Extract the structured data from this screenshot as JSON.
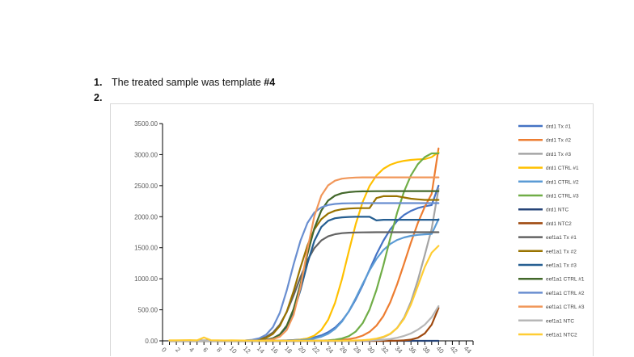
{
  "document": {
    "items": [
      {
        "number": "1.",
        "text_before": "The treated sample was template ",
        "text_bold": "#4"
      },
      {
        "number": "2.",
        "text_before": "",
        "text_bold": ""
      }
    ]
  },
  "chart_data": {
    "type": "line",
    "title": "",
    "xlabel": "",
    "ylabel": "",
    "ylim": [
      0,
      3500
    ],
    "xlim": [
      0,
      45
    ],
    "y_ticks": [
      "0.00",
      "500.00",
      "1000.00",
      "1500.00",
      "2000.00",
      "2500.00",
      "3000.00",
      "3500.00"
    ],
    "x_ticks": [
      0,
      2,
      4,
      6,
      8,
      10,
      12,
      14,
      16,
      18,
      20,
      22,
      24,
      26,
      28,
      30,
      32,
      34,
      36,
      38,
      40,
      42,
      44
    ],
    "legend_position": "right",
    "x": [
      1,
      2,
      3,
      4,
      5,
      6,
      7,
      8,
      9,
      10,
      11,
      12,
      13,
      14,
      15,
      16,
      17,
      18,
      19,
      20,
      21,
      22,
      23,
      24,
      25,
      26,
      27,
      28,
      29,
      30,
      31,
      32,
      33,
      34,
      35,
      36,
      37,
      38,
      39,
      40
    ],
    "series": [
      {
        "name": "drd1 Tx #1",
        "color": "#4472C4",
        "values": [
          0,
          0,
          0,
          0,
          0,
          0,
          0,
          0,
          0,
          0,
          0,
          0,
          0,
          1,
          2,
          3,
          5,
          8,
          13,
          22,
          35,
          56,
          89,
          139,
          214,
          324,
          474,
          667,
          897,
          1147,
          1393,
          1613,
          1794,
          1931,
          2028,
          2094,
          2139,
          2168,
          2187,
          2500
        ]
      },
      {
        "name": "drd1 Tx #2",
        "color": "#ED7D31",
        "values": [
          0,
          0,
          0,
          0,
          0,
          0,
          0,
          0,
          0,
          0,
          0,
          0,
          0,
          0,
          0,
          0,
          0,
          0,
          0,
          0,
          1,
          2,
          3,
          5,
          9,
          16,
          28,
          48,
          84,
          145,
          245,
          400,
          622,
          911,
          1244,
          1585,
          1898,
          2160,
          2368,
          3100
        ]
      },
      {
        "name": "drd1 Tx #3",
        "color": "#A5A5A5",
        "values": [
          0,
          0,
          0,
          0,
          0,
          0,
          0,
          0,
          0,
          0,
          0,
          0,
          0,
          0,
          0,
          0,
          0,
          0,
          0,
          0,
          0,
          0,
          0,
          0,
          0,
          1,
          2,
          4,
          8,
          15,
          30,
          58,
          111,
          208,
          374,
          630,
          977,
          1385,
          1805,
          2450
        ]
      },
      {
        "name": "drd1 CTRL #1",
        "color": "#FFC000",
        "values": [
          0,
          0,
          0,
          0,
          0,
          0,
          0,
          0,
          0,
          0,
          0,
          0,
          0,
          0,
          0,
          1,
          2,
          4,
          9,
          19,
          40,
          85,
          174,
          340,
          612,
          995,
          1444,
          1880,
          2238,
          2495,
          2664,
          2771,
          2836,
          2876,
          2900,
          2914,
          2923,
          2928,
          2960,
          3040
        ]
      },
      {
        "name": "drd1 CTRL #2",
        "color": "#5B9BD5",
        "values": [
          0,
          0,
          0,
          0,
          0,
          0,
          0,
          0,
          0,
          0,
          0,
          0,
          0,
          0,
          1,
          1,
          2,
          4,
          7,
          12,
          22,
          38,
          66,
          114,
          192,
          311,
          478,
          688,
          917,
          1136,
          1321,
          1462,
          1560,
          1625,
          1666,
          1691,
          1707,
          1716,
          1722,
          1960
        ]
      },
      {
        "name": "drd1 CTRL #3",
        "color": "#70AD47",
        "values": [
          0,
          0,
          0,
          0,
          0,
          0,
          0,
          0,
          0,
          0,
          0,
          0,
          0,
          0,
          0,
          0,
          0,
          0,
          0,
          0,
          1,
          2,
          4,
          9,
          18,
          38,
          76,
          150,
          285,
          505,
          820,
          1218,
          1654,
          2065,
          2407,
          2666,
          2845,
          2960,
          3020,
          3020
        ]
      },
      {
        "name": "drd1 NTC",
        "color": "#264478",
        "values": [
          0,
          0,
          0,
          0,
          0,
          0,
          0,
          0,
          0,
          0,
          0,
          0,
          0,
          0,
          0,
          0,
          0,
          0,
          0,
          0,
          0,
          0,
          0,
          0,
          0,
          0,
          0,
          0,
          0,
          0,
          0,
          0,
          0,
          0,
          0,
          0,
          0,
          0,
          0,
          0
        ]
      },
      {
        "name": "drd1 NTC2",
        "color": "#9E480E",
        "values": [
          0,
          0,
          0,
          0,
          0,
          0,
          0,
          0,
          0,
          0,
          0,
          0,
          0,
          0,
          0,
          0,
          0,
          0,
          0,
          0,
          0,
          0,
          0,
          0,
          0,
          0,
          0,
          0,
          0,
          0,
          0,
          0,
          1,
          3,
          8,
          20,
          50,
          120,
          260,
          530
        ]
      },
      {
        "name": "eef1a1 Tx #1",
        "color": "#636363",
        "values": [
          0,
          0,
          0,
          0,
          0,
          0,
          0,
          0,
          0,
          1,
          2,
          5,
          12,
          28,
          63,
          134,
          263,
          465,
          732,
          1029,
          1297,
          1494,
          1617,
          1684,
          1718,
          1735,
          1742,
          1746,
          1748,
          1749,
          1750,
          1750,
          1750,
          1750,
          1750,
          1750,
          1750,
          1750,
          1750,
          1750
        ]
      },
      {
        "name": "eef1a1 Tx #2",
        "color": "#997300",
        "values": [
          0,
          0,
          0,
          0,
          0,
          0,
          0,
          0,
          0,
          0,
          1,
          3,
          8,
          20,
          48,
          112,
          242,
          471,
          802,
          1186,
          1536,
          1796,
          1959,
          2050,
          2097,
          2120,
          2131,
          2136,
          2138,
          2139,
          2300,
          2330,
          2330,
          2330,
          2310,
          2290,
          2280,
          2270,
          2270,
          2270
        ]
      },
      {
        "name": "eef1a1 Tx #3",
        "color": "#255E91",
        "values": [
          0,
          0,
          0,
          0,
          0,
          0,
          0,
          0,
          0,
          0,
          0,
          1,
          3,
          7,
          17,
          42,
          100,
          226,
          464,
          826,
          1246,
          1610,
          1833,
          1935,
          1975,
          1990,
          1996,
          1998,
          1999,
          1999,
          1940,
          1950,
          1950,
          1950,
          1950,
          1950,
          1950,
          1950,
          1950,
          1950
        ]
      },
      {
        "name": "eef1a1 CTRL #1",
        "color": "#43682B",
        "values": [
          0,
          0,
          0,
          0,
          0,
          0,
          0,
          0,
          0,
          0,
          0,
          1,
          2,
          6,
          16,
          41,
          103,
          244,
          514,
          924,
          1399,
          1813,
          2099,
          2260,
          2340,
          2378,
          2396,
          2404,
          2408,
          2410,
          2411,
          2411,
          2412,
          2412,
          2412,
          2412,
          2412,
          2412,
          2412,
          2412
        ]
      },
      {
        "name": "eef1a1 CTRL #2",
        "color": "#698ED0",
        "values": [
          0,
          0,
          0,
          0,
          0,
          0,
          0,
          0,
          0,
          1,
          3,
          7,
          17,
          41,
          97,
          221,
          454,
          813,
          1233,
          1619,
          1900,
          2067,
          2150,
          2189,
          2206,
          2213,
          2216,
          2217,
          2218,
          2218,
          2218,
          2218,
          2218,
          2218,
          2218,
          2218,
          2218,
          2218,
          2218,
          2218
        ]
      },
      {
        "name": "eef1a1 CTRL #3",
        "color": "#F1975A",
        "values": [
          0,
          0,
          0,
          0,
          0,
          0,
          0,
          0,
          0,
          0,
          0,
          0,
          1,
          4,
          10,
          26,
          68,
          175,
          419,
          873,
          1474,
          2008,
          2340,
          2506,
          2580,
          2612,
          2625,
          2631,
          2633,
          2634,
          2634,
          2634,
          2634,
          2634,
          2634,
          2634,
          2634,
          2634,
          2634,
          2634
        ]
      },
      {
        "name": "eef1a1 NTC",
        "color": "#B7B7B7",
        "values": [
          0,
          0,
          0,
          0,
          0,
          0,
          0,
          0,
          0,
          0,
          0,
          0,
          0,
          0,
          0,
          0,
          0,
          0,
          0,
          0,
          0,
          0,
          0,
          0,
          0,
          0,
          0,
          0,
          2,
          5,
          10,
          18,
          30,
          50,
          80,
          120,
          180,
          260,
          380,
          560
        ]
      },
      {
        "name": "eef1a1 NTC2",
        "color": "#FFCD33",
        "values": [
          8,
          8,
          10,
          12,
          8,
          55,
          10,
          8,
          6,
          8,
          6,
          5,
          4,
          3,
          2,
          3,
          2,
          2,
          2,
          3,
          3,
          2,
          2,
          3,
          2,
          3,
          4,
          6,
          11,
          20,
          36,
          65,
          116,
          206,
          356,
          585,
          884,
          1190,
          1420,
          1530
        ]
      }
    ]
  }
}
